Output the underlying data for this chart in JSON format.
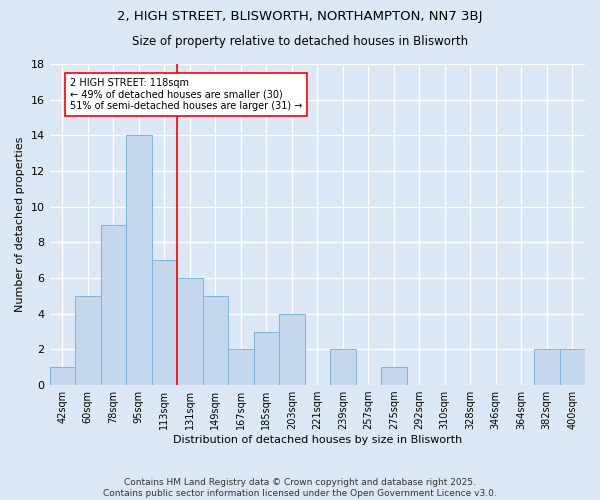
{
  "title": "2, HIGH STREET, BLISWORTH, NORTHAMPTON, NN7 3BJ",
  "subtitle": "Size of property relative to detached houses in Blisworth",
  "xlabel": "Distribution of detached houses by size in Blisworth",
  "ylabel": "Number of detached properties",
  "footer_line1": "Contains HM Land Registry data © Crown copyright and database right 2025.",
  "footer_line2": "Contains public sector information licensed under the Open Government Licence v3.0.",
  "categories": [
    "42sqm",
    "60sqm",
    "78sqm",
    "95sqm",
    "113sqm",
    "131sqm",
    "149sqm",
    "167sqm",
    "185sqm",
    "203sqm",
    "221sqm",
    "239sqm",
    "257sqm",
    "275sqm",
    "292sqm",
    "310sqm",
    "328sqm",
    "346sqm",
    "364sqm",
    "382sqm",
    "400sqm"
  ],
  "values": [
    1,
    5,
    9,
    14,
    7,
    6,
    5,
    2,
    3,
    4,
    0,
    2,
    0,
    1,
    0,
    0,
    0,
    0,
    0,
    2,
    2
  ],
  "bar_color": "#c5d8ee",
  "bar_edge_color": "#7fb3d3",
  "background_color": "#dce8f5",
  "grid_color": "#ffffff",
  "vline_x": 4.5,
  "vline_color": "red",
  "annotation_text": "2 HIGH STREET: 118sqm\n← 49% of detached houses are smaller (30)\n51% of semi-detached houses are larger (31) →",
  "annotation_box_color": "white",
  "annotation_box_edge": "red",
  "ylim": [
    0,
    18
  ],
  "yticks": [
    0,
    2,
    4,
    6,
    8,
    10,
    12,
    14,
    16,
    18
  ]
}
